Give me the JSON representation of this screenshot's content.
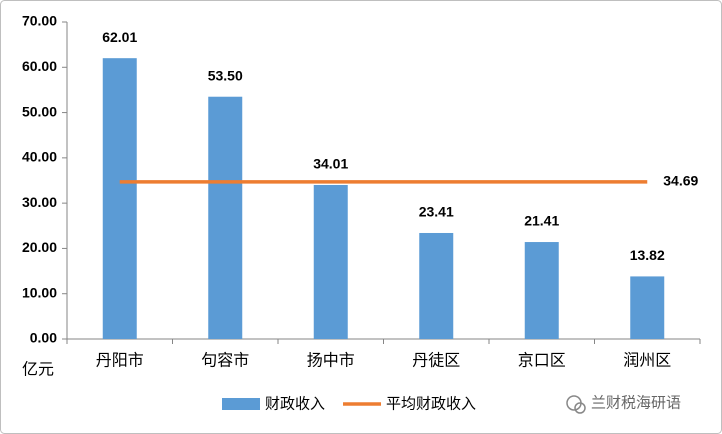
{
  "chart_data": {
    "type": "bar-line",
    "y_unit": "亿元",
    "categories": [
      "丹阳市",
      "句容市",
      "扬中市",
      "丹徒区",
      "京口区",
      "润州区"
    ],
    "series": [
      {
        "name": "财政收入",
        "type": "bar",
        "color": "#5b9bd5",
        "values": [
          62.01,
          53.5,
          34.01,
          23.41,
          21.41,
          13.82
        ],
        "value_labels": [
          "62.01",
          "53.50",
          "34.01",
          "23.41",
          "21.41",
          "13.82"
        ]
      },
      {
        "name": "平均财政收入",
        "type": "line",
        "color": "#ed7d31",
        "values": [
          34.69,
          34.69,
          34.69,
          34.69,
          34.69,
          34.69
        ]
      }
    ],
    "ylim": [
      0,
      70
    ],
    "yticks": [
      {
        "value": 0,
        "label": "0.00"
      },
      {
        "value": 10,
        "label": "10.00"
      },
      {
        "value": 20,
        "label": "20.00"
      },
      {
        "value": 30,
        "label": "30.00"
      },
      {
        "value": 40,
        "label": "40.00"
      },
      {
        "value": 50,
        "label": "50.00"
      },
      {
        "value": 60,
        "label": "60.00"
      },
      {
        "value": 70,
        "label": "70.00"
      }
    ],
    "legend": "bottom",
    "watermark": "兰财税海研语"
  }
}
